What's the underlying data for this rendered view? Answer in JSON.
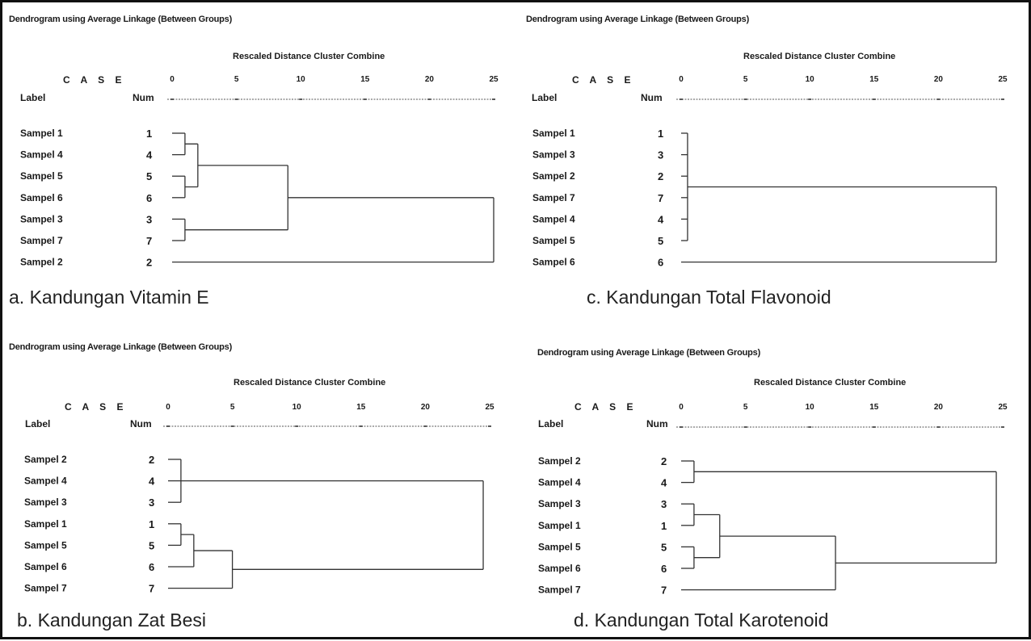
{
  "panels": [
    {
      "id": "a",
      "heading": "Dendrogram using Average Linkage (Between Groups)",
      "subtitle": "Rescaled Distance Cluster Combine",
      "case_label": "C A S E",
      "label_header": "Label",
      "num_header": "Num",
      "ticks": [
        "0",
        "5",
        "10",
        "15",
        "20",
        "25"
      ],
      "caption": "a. Kandungan Vitamin E",
      "rows": [
        {
          "label": "Sampel 1",
          "num": "1"
        },
        {
          "label": "Sampel 4",
          "num": "4"
        },
        {
          "label": "Sampel 5",
          "num": "5"
        },
        {
          "label": "Sampel 6",
          "num": "6"
        },
        {
          "label": "Sampel 3",
          "num": "3"
        },
        {
          "label": "Sampel 7",
          "num": "7"
        },
        {
          "label": "Sampel 2",
          "num": "2"
        }
      ],
      "merges": [
        {
          "a": "L0",
          "b": "L1",
          "d": 1
        },
        {
          "a": "L2",
          "b": "L3",
          "d": 1
        },
        {
          "a": "M0",
          "b": "M1",
          "d": 2
        },
        {
          "a": "L4",
          "b": "L5",
          "d": 1
        },
        {
          "a": "M2",
          "b": "M3",
          "d": 9
        },
        {
          "a": "M4",
          "b": "L6",
          "d": 25
        }
      ]
    },
    {
      "id": "c",
      "heading": "Dendrogram using Average Linkage (Between Groups)",
      "subtitle": "Rescaled Distance Cluster Combine",
      "case_label": "C A S E",
      "label_header": "Label",
      "num_header": "Num",
      "ticks": [
        "0",
        "5",
        "10",
        "15",
        "20",
        "25"
      ],
      "caption": "c. Kandungan Total Flavonoid",
      "rows": [
        {
          "label": "Sampel 1",
          "num": "1"
        },
        {
          "label": "Sampel 3",
          "num": "3"
        },
        {
          "label": "Sampel 2",
          "num": "2"
        },
        {
          "label": "Sampel 7",
          "num": "7"
        },
        {
          "label": "Sampel 4",
          "num": "4"
        },
        {
          "label": "Sampel 5",
          "num": "5"
        },
        {
          "label": "Sampel 6",
          "num": "6"
        }
      ],
      "merges": [
        {
          "a": "L0",
          "b": "L5",
          "d": 0.5,
          "members": [
            "L0",
            "L1",
            "L2",
            "L3",
            "L4",
            "L5"
          ]
        },
        {
          "a": "M0",
          "b": "L6",
          "d": 24.5
        }
      ]
    },
    {
      "id": "b",
      "heading": "Dendrogram using Average Linkage (Between Groups)",
      "subtitle": "Rescaled Distance Cluster Combine",
      "case_label": "C A S E",
      "label_header": "Label",
      "num_header": "Num",
      "ticks": [
        "0",
        "5",
        "10",
        "15",
        "20",
        "25"
      ],
      "caption": "b. Kandungan Zat Besi",
      "rows": [
        {
          "label": "Sampel 2",
          "num": "2"
        },
        {
          "label": "Sampel 4",
          "num": "4"
        },
        {
          "label": "Sampel 3",
          "num": "3"
        },
        {
          "label": "Sampel 1",
          "num": "1"
        },
        {
          "label": "Sampel 5",
          "num": "5"
        },
        {
          "label": "Sampel 6",
          "num": "6"
        },
        {
          "label": "Sampel 7",
          "num": "7"
        }
      ],
      "merges": [
        {
          "a": "L0",
          "b": "L2",
          "d": 1,
          "members": [
            "L0",
            "L1",
            "L2"
          ]
        },
        {
          "a": "L3",
          "b": "L4",
          "d": 1
        },
        {
          "a": "M1",
          "b": "L5",
          "d": 2
        },
        {
          "a": "M2",
          "b": "L6",
          "d": 5
        },
        {
          "a": "M0",
          "b": "M3",
          "d": 24.5
        }
      ]
    },
    {
      "id": "d",
      "heading": "Dendrogram using Average Linkage (Between Groups)",
      "subtitle": "Rescaled Distance Cluster Combine",
      "case_label": "C A S E",
      "label_header": "Label",
      "num_header": "Num",
      "ticks": [
        "0",
        "5",
        "10",
        "15",
        "20",
        "25"
      ],
      "caption": "d. Kandungan Total Karotenoid",
      "rows": [
        {
          "label": "Sampel 2",
          "num": "2"
        },
        {
          "label": "Sampel 4",
          "num": "4"
        },
        {
          "label": "Sampel 3",
          "num": "3"
        },
        {
          "label": "Sampel 1",
          "num": "1"
        },
        {
          "label": "Sampel 5",
          "num": "5"
        },
        {
          "label": "Sampel 6",
          "num": "6"
        },
        {
          "label": "Sampel 7",
          "num": "7"
        }
      ],
      "merges": [
        {
          "a": "L0",
          "b": "L1",
          "d": 1
        },
        {
          "a": "L2",
          "b": "L3",
          "d": 1
        },
        {
          "a": "L4",
          "b": "L5",
          "d": 1
        },
        {
          "a": "M1",
          "b": "M2",
          "d": 3
        },
        {
          "a": "M3",
          "b": "L6",
          "d": 12
        },
        {
          "a": "M0",
          "b": "M4",
          "d": 24.5
        }
      ]
    }
  ]
}
